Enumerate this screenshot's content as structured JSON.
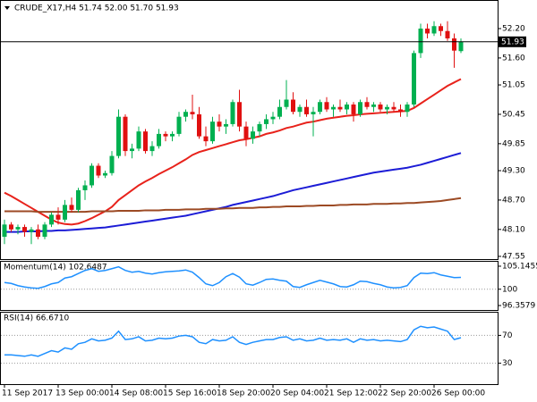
{
  "chart_data": [
    {
      "type": "candlestick",
      "title": "CRUDE_X17,H4 51.74 52.00 51.70 51.93",
      "categories": [
        "11 Sep 2017",
        null,
        null,
        null,
        null,
        null,
        null,
        null,
        "13 Sep 00:00",
        null,
        null,
        null,
        null,
        null,
        null,
        null,
        "14 Sep 08:00",
        null,
        null,
        null,
        null,
        null,
        null,
        null,
        "15 Sep 16:00",
        null,
        null,
        null,
        null,
        null,
        null,
        null,
        "18 Sep 20:00",
        null,
        null,
        null,
        null,
        null,
        null,
        null,
        "20 Sep 04:00",
        null,
        null,
        null,
        null,
        null,
        null,
        null,
        "21 Sep 12:00",
        null,
        null,
        null,
        null,
        null,
        null,
        null,
        "22 Sep 20:00",
        null,
        null,
        null,
        null,
        null,
        null,
        null,
        "26 Sep 00:00",
        null,
        null,
        null,
        null
      ],
      "open": [
        47.95,
        48.2,
        48.1,
        48.15,
        48.05,
        48.1,
        47.95,
        48.2,
        48.4,
        48.3,
        48.6,
        48.5,
        48.9,
        49.0,
        49.4,
        49.2,
        49.25,
        49.6,
        50.4,
        49.7,
        49.75,
        50.1,
        49.7,
        49.8,
        50.05,
        50.0,
        50.05,
        50.4,
        50.5,
        50.45,
        50.0,
        49.9,
        50.3,
        50.2,
        50.25,
        50.7,
        50.2,
        49.95,
        50.1,
        50.25,
        50.35,
        50.4,
        50.6,
        50.75,
        50.5,
        50.6,
        50.45,
        50.5,
        50.7,
        50.55,
        50.6,
        50.55,
        50.65,
        50.45,
        50.7,
        50.6,
        50.65,
        50.55,
        50.6,
        50.55,
        50.5,
        50.65,
        51.7,
        52.2,
        52.1,
        52.25,
        52.15,
        52.0,
        51.74
      ],
      "high": [
        48.3,
        48.25,
        48.2,
        48.2,
        48.15,
        48.2,
        48.25,
        48.45,
        48.55,
        48.7,
        48.75,
        48.95,
        49.1,
        49.45,
        49.45,
        49.3,
        49.7,
        50.55,
        50.45,
        49.85,
        50.2,
        50.15,
        49.9,
        50.15,
        50.1,
        50.1,
        50.5,
        50.55,
        50.85,
        50.6,
        50.2,
        50.4,
        50.45,
        50.35,
        50.75,
        50.95,
        50.3,
        50.2,
        50.3,
        50.45,
        50.5,
        50.75,
        51.15,
        50.9,
        50.65,
        50.75,
        50.6,
        50.75,
        50.8,
        50.65,
        50.75,
        50.7,
        50.7,
        50.75,
        50.8,
        50.7,
        50.7,
        50.65,
        50.7,
        50.65,
        50.7,
        51.75,
        52.3,
        52.3,
        52.35,
        52.3,
        52.35,
        52.1,
        52.0
      ],
      "low": [
        47.8,
        48.05,
        48.0,
        47.95,
        47.8,
        47.9,
        47.9,
        48.15,
        48.2,
        48.25,
        48.45,
        48.45,
        48.7,
        48.95,
        49.15,
        49.15,
        49.2,
        49.55,
        49.6,
        49.55,
        49.7,
        49.65,
        49.6,
        49.75,
        49.9,
        49.9,
        50.0,
        50.3,
        50.35,
        49.95,
        49.8,
        49.85,
        50.1,
        50.05,
        50.2,
        50.1,
        49.8,
        49.85,
        50.0,
        50.15,
        50.25,
        50.35,
        50.55,
        50.45,
        50.4,
        50.4,
        50.0,
        50.45,
        50.5,
        50.4,
        50.5,
        50.45,
        50.3,
        50.4,
        50.55,
        50.5,
        50.5,
        50.45,
        50.5,
        50.4,
        50.4,
        50.6,
        51.6,
        52.0,
        52.05,
        52.05,
        51.95,
        51.4,
        51.7
      ],
      "close": [
        48.2,
        48.1,
        48.15,
        48.05,
        48.1,
        47.95,
        48.2,
        48.4,
        48.3,
        48.6,
        48.5,
        48.9,
        49.0,
        49.4,
        49.2,
        49.25,
        49.6,
        50.4,
        49.7,
        49.75,
        50.1,
        49.7,
        49.8,
        50.05,
        50.0,
        50.05,
        50.4,
        50.5,
        50.45,
        50.0,
        49.9,
        50.3,
        50.2,
        50.25,
        50.7,
        50.2,
        49.95,
        50.1,
        50.25,
        50.35,
        50.4,
        50.6,
        50.75,
        50.5,
        50.6,
        50.45,
        50.5,
        50.7,
        50.55,
        50.6,
        50.55,
        50.65,
        50.45,
        50.7,
        50.6,
        50.65,
        50.55,
        50.6,
        50.55,
        50.5,
        50.65,
        51.7,
        52.2,
        52.1,
        52.25,
        52.15,
        52.0,
        51.75,
        51.93
      ],
      "up_color": "#00b050",
      "down_color": "#e01010",
      "series": [
        {
          "color": "#e8221b",
          "values": [
            48.85,
            48.78,
            48.7,
            48.62,
            48.54,
            48.46,
            48.38,
            48.3,
            48.24,
            48.21,
            48.2,
            48.22,
            48.27,
            48.33,
            48.4,
            48.47,
            48.56,
            48.7,
            48.8,
            48.9,
            49.0,
            49.08,
            49.15,
            49.23,
            49.3,
            49.37,
            49.45,
            49.53,
            49.62,
            49.68,
            49.72,
            49.76,
            49.8,
            49.84,
            49.88,
            49.92,
            49.94,
            49.97,
            50.0,
            50.05,
            50.08,
            50.12,
            50.17,
            50.2,
            50.24,
            50.28,
            50.3,
            50.33,
            50.36,
            50.38,
            50.4,
            50.42,
            50.43,
            50.45,
            50.46,
            50.47,
            50.48,
            50.49,
            50.5,
            50.51,
            50.52,
            50.58,
            50.67,
            50.76,
            50.85,
            50.94,
            51.03,
            51.1,
            51.17
          ]
        },
        {
          "color": "#1c1cd6",
          "values": [
            48.05,
            48.05,
            48.05,
            48.06,
            48.06,
            48.06,
            48.07,
            48.07,
            48.08,
            48.08,
            48.09,
            48.1,
            48.11,
            48.12,
            48.13,
            48.14,
            48.16,
            48.18,
            48.2,
            48.22,
            48.24,
            48.26,
            48.28,
            48.3,
            48.32,
            48.34,
            48.36,
            48.38,
            48.41,
            48.44,
            48.47,
            48.5,
            48.53,
            48.56,
            48.6,
            48.63,
            48.66,
            48.69,
            48.72,
            48.75,
            48.78,
            48.82,
            48.86,
            48.9,
            48.93,
            48.96,
            48.99,
            49.02,
            49.05,
            49.08,
            49.11,
            49.14,
            49.17,
            49.2,
            49.23,
            49.26,
            49.28,
            49.3,
            49.32,
            49.34,
            49.36,
            49.39,
            49.42,
            49.46,
            49.5,
            49.54,
            49.58,
            49.62,
            49.66
          ]
        },
        {
          "color": "#9c4a24",
          "values": [
            48.47,
            48.47,
            48.47,
            48.47,
            48.47,
            48.46,
            48.46,
            48.46,
            48.46,
            48.46,
            48.46,
            48.46,
            48.46,
            48.47,
            48.47,
            48.47,
            48.47,
            48.48,
            48.48,
            48.48,
            48.48,
            48.49,
            48.49,
            48.49,
            48.5,
            48.5,
            48.5,
            48.51,
            48.51,
            48.51,
            48.52,
            48.52,
            48.52,
            48.53,
            48.53,
            48.54,
            48.54,
            48.54,
            48.55,
            48.55,
            48.56,
            48.56,
            48.57,
            48.57,
            48.57,
            48.58,
            48.58,
            48.59,
            48.59,
            48.59,
            48.6,
            48.6,
            48.61,
            48.61,
            48.61,
            48.62,
            48.62,
            48.62,
            48.63,
            48.63,
            48.64,
            48.64,
            48.65,
            48.66,
            48.67,
            48.68,
            48.7,
            48.72,
            48.74
          ]
        }
      ],
      "last_price": 51.93,
      "ylim": [
        47.495,
        52.747
      ],
      "yticks": [
        {
          "value": 52.2,
          "label": "52.20"
        },
        {
          "value": 51.6,
          "label": "51.60"
        },
        {
          "value": 51.05,
          "label": "51.05"
        },
        {
          "value": 50.45,
          "label": "50.45"
        },
        {
          "value": 49.85,
          "label": "49.85"
        },
        {
          "value": 49.3,
          "label": "49.30"
        },
        {
          "value": 48.7,
          "label": "48.70"
        },
        {
          "value": 48.1,
          "label": "48.10"
        },
        {
          "value": 47.55,
          "label": "47.55"
        }
      ]
    },
    {
      "type": "line",
      "title": "Momentum(14) 102.6487",
      "color": "#1e90ff",
      "values": [
        101.5,
        101.3,
        100.8,
        100.5,
        100.3,
        100.2,
        100.6,
        101.2,
        101.5,
        102.5,
        102.8,
        103.5,
        104.2,
        104.6,
        104.0,
        104.2,
        104.6,
        105.0,
        104.2,
        103.8,
        104.0,
        103.6,
        103.4,
        103.7,
        103.9,
        104.0,
        104.1,
        104.3,
        103.8,
        102.6,
        101.2,
        100.8,
        101.5,
        102.8,
        103.5,
        102.7,
        101.2,
        100.9,
        101.5,
        102.2,
        102.3,
        102.0,
        101.8,
        100.6,
        100.4,
        101.0,
        101.5,
        102.0,
        101.6,
        101.2,
        100.6,
        100.5,
        101.0,
        101.8,
        101.7,
        101.3,
        101.0,
        100.5,
        100.3,
        100.4,
        100.8,
        102.6,
        103.6,
        103.5,
        103.7,
        103.2,
        102.9,
        102.6,
        102.6487
      ],
      "ylim": [
        95.36,
        106.14
      ],
      "yticks": [
        105.1455,
        100,
        96.3579
      ],
      "hlines": [
        100
      ]
    },
    {
      "type": "line",
      "title": "RSI(14) 66.6710",
      "color": "#1e90ff",
      "values": [
        42,
        42,
        41,
        40,
        42,
        40,
        44,
        48,
        46,
        52,
        50,
        58,
        60,
        65,
        62,
        63,
        66,
        76,
        64,
        65,
        68,
        62,
        63,
        66,
        65,
        66,
        69,
        70,
        68,
        60,
        58,
        64,
        62,
        63,
        68,
        60,
        57,
        60,
        62,
        64,
        64,
        67,
        68,
        63,
        65,
        62,
        63,
        66,
        63,
        64,
        63,
        65,
        60,
        65,
        63,
        64,
        62,
        63,
        62,
        61,
        64,
        78,
        83,
        81,
        82,
        79,
        76,
        64,
        66.671
      ],
      "ylim": [
        0,
        100
      ],
      "yticks": [
        70,
        30
      ],
      "hlines": [
        70,
        30
      ]
    }
  ]
}
